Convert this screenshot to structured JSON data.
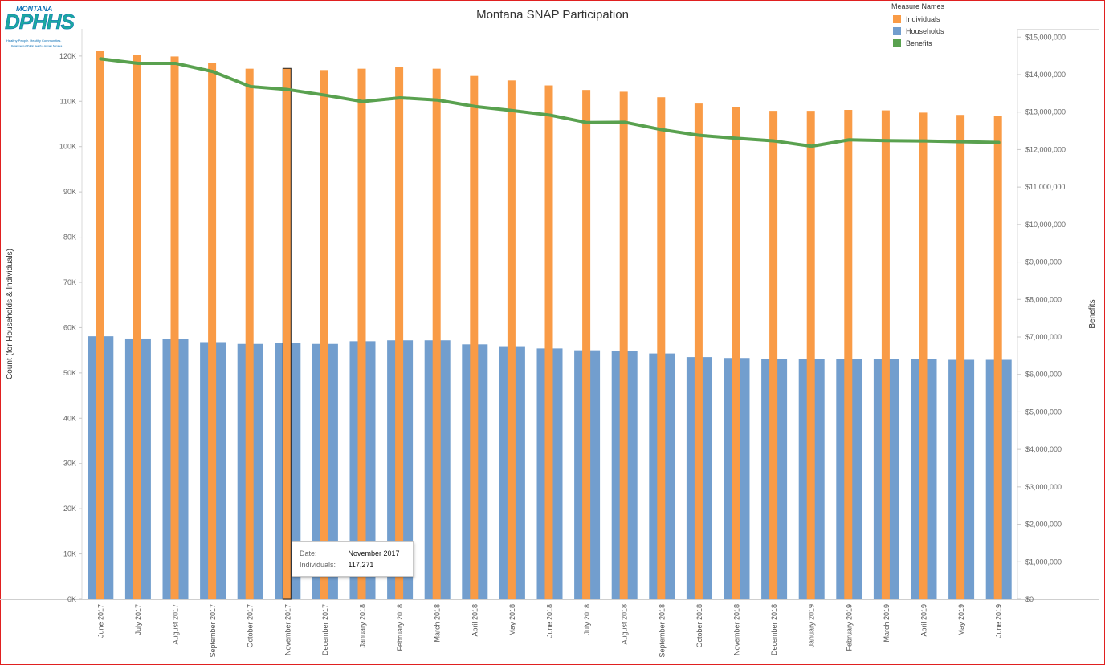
{
  "logo": {
    "line1": "MONTANA",
    "line2": "DPHHS",
    "line3": "Healthy People. Healthy Communities.",
    "line4": "Department of Public Health & Human Services"
  },
  "legend": {
    "title": "Measure Names",
    "items": [
      {
        "label": "Individuals",
        "color": "#f99b46"
      },
      {
        "label": "Households",
        "color": "#729ece"
      },
      {
        "label": "Benefits",
        "color": "#59a14f"
      }
    ]
  },
  "tooltip": {
    "date_label": "Date:",
    "date_value": "November 2017",
    "individuals_label": "Individuals:",
    "individuals_value": "117,271"
  },
  "chart_data": {
    "type": "bar",
    "title": "Montana SNAP Participation",
    "ylabel": "Count (for Households & Individuals)",
    "y2label": "Benefits",
    "ylim": [
      0,
      126000
    ],
    "y2lim": [
      0,
      15220000
    ],
    "yticks": [
      {
        "value": 0,
        "label": "0K"
      },
      {
        "value": 10000,
        "label": "10K"
      },
      {
        "value": 20000,
        "label": "20K"
      },
      {
        "value": 30000,
        "label": "30K"
      },
      {
        "value": 40000,
        "label": "40K"
      },
      {
        "value": 50000,
        "label": "50K"
      },
      {
        "value": 60000,
        "label": "60K"
      },
      {
        "value": 70000,
        "label": "70K"
      },
      {
        "value": 80000,
        "label": "80K"
      },
      {
        "value": 90000,
        "label": "90K"
      },
      {
        "value": 100000,
        "label": "100K"
      },
      {
        "value": 110000,
        "label": "110K"
      },
      {
        "value": 120000,
        "label": "120K"
      }
    ],
    "y2ticks": [
      {
        "value": 0,
        "label": "$0"
      },
      {
        "value": 1000000,
        "label": "$1,000,000"
      },
      {
        "value": 2000000,
        "label": "$2,000,000"
      },
      {
        "value": 3000000,
        "label": "$3,000,000"
      },
      {
        "value": 4000000,
        "label": "$4,000,000"
      },
      {
        "value": 5000000,
        "label": "$5,000,000"
      },
      {
        "value": 6000000,
        "label": "$6,000,000"
      },
      {
        "value": 7000000,
        "label": "$7,000,000"
      },
      {
        "value": 8000000,
        "label": "$8,000,000"
      },
      {
        "value": 9000000,
        "label": "$9,000,000"
      },
      {
        "value": 10000000,
        "label": "$10,000,000"
      },
      {
        "value": 11000000,
        "label": "$11,000,000"
      },
      {
        "value": 12000000,
        "label": "$12,000,000"
      },
      {
        "value": 13000000,
        "label": "$13,000,000"
      },
      {
        "value": 14000000,
        "label": "$14,000,000"
      },
      {
        "value": 15000000,
        "label": "$15,000,000"
      }
    ],
    "categories": [
      "June 2017",
      "July 2017",
      "August 2017",
      "September 2017",
      "October 2017",
      "November 2017",
      "December 2017",
      "January 2018",
      "February 2018",
      "March 2018",
      "April 2018",
      "May 2018",
      "June 2018",
      "July 2018",
      "August 2018",
      "September 2018",
      "October 2018",
      "November 2018",
      "December 2018",
      "January 2019",
      "February 2019",
      "March 2019",
      "April 2019",
      "May 2019",
      "June 2019"
    ],
    "series": [
      {
        "name": "Individuals",
        "color": "#f99b46",
        "axis": "left",
        "values": [
          121100,
          120300,
          119900,
          118400,
          117200,
          117271,
          116900,
          117200,
          117500,
          117200,
          115600,
          114600,
          113500,
          112500,
          112100,
          110900,
          109500,
          108700,
          107900,
          107900,
          108100,
          108000,
          107500,
          107000,
          106800
        ]
      },
      {
        "name": "Households",
        "color": "#729ece",
        "axis": "left",
        "values": [
          58100,
          57600,
          57500,
          56800,
          56400,
          56600,
          56400,
          57000,
          57200,
          57200,
          56300,
          55900,
          55400,
          55000,
          54800,
          54300,
          53500,
          53300,
          53000,
          53000,
          53100,
          53100,
          53000,
          52900,
          52900
        ]
      },
      {
        "name": "Benefits",
        "color": "#59a14f",
        "axis": "right",
        "type": "line",
        "values": [
          14420000,
          14300000,
          14300000,
          14080000,
          13680000,
          13600000,
          13450000,
          13280000,
          13380000,
          13320000,
          13150000,
          13040000,
          12920000,
          12720000,
          12730000,
          12530000,
          12380000,
          12300000,
          12230000,
          12090000,
          12260000,
          12240000,
          12230000,
          12210000,
          12190000
        ]
      }
    ],
    "highlighted_category": "November 2017",
    "legend_position": "top-right",
    "grid": false
  }
}
